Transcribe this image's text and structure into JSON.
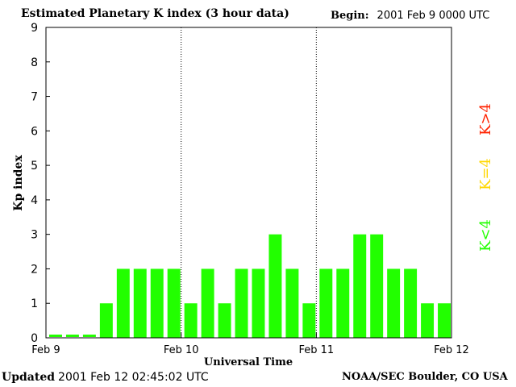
{
  "header": {
    "title": "Estimated Planetary K index (3 hour data)",
    "begin_label": "Begin:",
    "begin_value": "2001 Feb 9 0000 UTC"
  },
  "footer": {
    "updated_label": "Updated",
    "updated_value": "2001 Feb 12 02:45:02 UTC",
    "source": "NOAA/SEC Boulder, CO USA"
  },
  "legend": {
    "high": "K>4",
    "equal": "K=4",
    "low": "K<4"
  },
  "colors": {
    "low": "#22ff00",
    "equal": "#ffd700",
    "high": "#ff2200",
    "axis": "#000000"
  },
  "chart_data": {
    "type": "bar",
    "title": "Estimated Planetary K index (3 hour data)",
    "xlabel": "Universal Time",
    "ylabel": "Kp index",
    "ylim": [
      0,
      9
    ],
    "yticks": [
      0,
      1,
      2,
      3,
      4,
      5,
      6,
      7,
      8,
      9
    ],
    "x_tick_labels": [
      "Feb 9",
      "Feb 10",
      "Feb 11",
      "Feb 12"
    ],
    "grid": false,
    "day_separators": "dotted vertical lines at day boundaries",
    "interval_hours": 3,
    "values": [
      0,
      0,
      0,
      1,
      2,
      2,
      2,
      2,
      1,
      2,
      1,
      2,
      2,
      3,
      2,
      1,
      2,
      2,
      3,
      3,
      2,
      2,
      1,
      1
    ]
  }
}
